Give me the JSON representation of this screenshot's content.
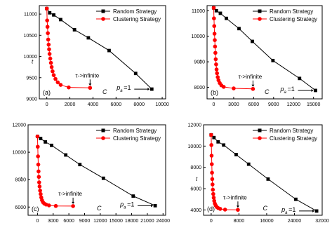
{
  "figure": {
    "panel_count": 4
  },
  "chart_data": [
    {
      "type": "line",
      "panel_label": "(a)",
      "x_ticks": [
        "0",
        "2000",
        "4000",
        "6000",
        "8000",
        "10000"
      ],
      "y_ticks": [
        "9000",
        "9500",
        "10000",
        "10500",
        "11000"
      ],
      "x_tick_values": [
        0,
        2000,
        4000,
        6000,
        8000,
        10000
      ],
      "y_tick_values": [
        9000,
        9500,
        10000,
        10500,
        11000
      ],
      "xlim": [
        -650,
        10300
      ],
      "ylim": [
        9000,
        11200
      ],
      "xlabel": "C",
      "ylabel": "t",
      "legend_position": "top-right",
      "series": [
        {
          "name": "Random Strategy",
          "color": "#000000",
          "marker": "square",
          "x": [
            0,
            250,
            600,
            1200,
            2400,
            3600,
            5400,
            7700,
            9100
          ],
          "y": [
            11130,
            11030,
            10980,
            10870,
            10630,
            10440,
            10140,
            9600,
            9230
          ]
        },
        {
          "name": "Clustering Strategy",
          "color": "#ff0000",
          "marker": "circle",
          "x": [
            0,
            30,
            60,
            90,
            120,
            160,
            200,
            240,
            300,
            360,
            420,
            500,
            600,
            750,
            950,
            1200,
            1900,
            3750
          ],
          "y": [
            11130,
            10850,
            10700,
            10550,
            10400,
            10280,
            10170,
            10060,
            9950,
            9850,
            9750,
            9650,
            9560,
            9470,
            9390,
            9330,
            9270,
            9260
          ]
        }
      ],
      "annotations": [
        {
          "text": "τ->infinite",
          "point": [
            3750,
            9260
          ]
        },
        {
          "text": "p",
          "subscript": "a",
          "suffix": "=1",
          "point": [
            9100,
            9230
          ]
        }
      ]
    },
    {
      "type": "line",
      "panel_label": "(b)",
      "x_ticks": [
        "0",
        "3000",
        "6000",
        "9000",
        "12000",
        "15000"
      ],
      "y_ticks": [
        "8000",
        "9000",
        "10000",
        "11000"
      ],
      "x_tick_values": [
        0,
        3000,
        6000,
        9000,
        12000,
        15000
      ],
      "y_tick_values": [
        8000,
        9000,
        10000,
        11000
      ],
      "xlim": [
        -1000,
        16300
      ],
      "ylim": [
        7550,
        11200
      ],
      "xlabel": "C",
      "ylabel": "t",
      "legend_position": "top-right",
      "series": [
        {
          "name": "Random Strategy",
          "color": "#000000",
          "marker": "square",
          "x": [
            0,
            400,
            1000,
            1900,
            3800,
            5800,
            8900,
            12900,
            15300
          ],
          "y": [
            11110,
            11000,
            10900,
            10700,
            10300,
            9800,
            9050,
            8350,
            7880
          ]
        },
        {
          "name": "Clustering Strategy",
          "color": "#ff0000",
          "marker": "circle",
          "x": [
            0,
            40,
            80,
            120,
            160,
            200,
            250,
            300,
            360,
            430,
            500,
            600,
            720,
            900,
            1150,
            1500,
            3000,
            5900
          ],
          "y": [
            11110,
            10700,
            10400,
            10100,
            9850,
            9600,
            9350,
            9100,
            8900,
            8700,
            8550,
            8400,
            8280,
            8170,
            8080,
            8020,
            7960,
            7940
          ]
        }
      ],
      "annotations": [
        {
          "text": "τ->infinite",
          "point": [
            5900,
            7940
          ]
        },
        {
          "text": "p",
          "subscript": "a",
          "suffix": "=1",
          "point": [
            15300,
            7880
          ]
        }
      ]
    },
    {
      "type": "line",
      "panel_label": "(c)",
      "x_ticks": [
        "0",
        "3000",
        "6000",
        "9000",
        "12000",
        "15000",
        "18000",
        "21000",
        "24000"
      ],
      "y_ticks": [
        "6000",
        "8000",
        "10000",
        "12000"
      ],
      "x_tick_values": [
        0,
        3000,
        6000,
        9000,
        12000,
        15000,
        18000,
        21000,
        24000
      ],
      "y_tick_values": [
        6000,
        8000,
        10000,
        12000
      ],
      "xlim": [
        -1800,
        24500
      ],
      "ylim": [
        5400,
        12000
      ],
      "xlabel": "C",
      "ylabel": "t",
      "legend_position": "top-right",
      "series": [
        {
          "name": "Random Strategy",
          "color": "#000000",
          "marker": "square",
          "x": [
            0,
            600,
            1500,
            2700,
            5400,
            8100,
            12600,
            18300,
            22500
          ],
          "y": [
            11150,
            11000,
            10750,
            10500,
            9800,
            9100,
            8100,
            6800,
            6100
          ]
        },
        {
          "name": "Clustering Strategy",
          "color": "#ff0000",
          "marker": "circle",
          "x": [
            0,
            50,
            100,
            150,
            200,
            260,
            320,
            400,
            500,
            600,
            720,
            860,
            1050,
            1300,
            1650,
            2200,
            3500,
            6800
          ],
          "y": [
            11150,
            10400,
            9700,
            9100,
            8600,
            8200,
            7800,
            7500,
            7200,
            6950,
            6700,
            6500,
            6350,
            6250,
            6180,
            6120,
            6080,
            6070
          ]
        }
      ],
      "annotations": [
        {
          "text": "τ->infinite",
          "point": [
            6800,
            6070
          ]
        },
        {
          "text": "p",
          "subscript": "a",
          "suffix": "=1",
          "point": [
            22500,
            6100
          ]
        }
      ]
    },
    {
      "type": "line",
      "panel_label": "(d)",
      "x_ticks": [
        "0",
        "8000",
        "16000",
        "24000",
        "32000"
      ],
      "y_ticks": [
        "4000",
        "6000",
        "8000",
        "10000",
        "12000"
      ],
      "x_tick_values": [
        0,
        8000,
        16000,
        24000,
        32000
      ],
      "y_tick_values": [
        4000,
        6000,
        8000,
        10000,
        12000
      ],
      "xlim": [
        -2200,
        32000
      ],
      "ylim": [
        3500,
        12000
      ],
      "xlabel": "C",
      "ylabel": "t",
      "legend_position": "top-right",
      "series": [
        {
          "name": "Random Strategy",
          "color": "#000000",
          "marker": "square",
          "x": [
            0,
            800,
            2000,
            3600,
            7200,
            10800,
            16400,
            24400,
            30400
          ],
          "y": [
            11050,
            10800,
            10400,
            10100,
            9200,
            8300,
            6900,
            5000,
            3900
          ]
        },
        {
          "name": "Clustering Strategy",
          "color": "#ff0000",
          "marker": "circle",
          "x": [
            0,
            60,
            120,
            180,
            240,
            310,
            390,
            480,
            600,
            730,
            880,
            1060,
            1300,
            1600,
            2000,
            2600,
            4000,
            7700
          ],
          "y": [
            11050,
            10100,
            9100,
            8300,
            7500,
            6900,
            6400,
            5900,
            5500,
            5150,
            4850,
            4600,
            4420,
            4280,
            4180,
            4100,
            4030,
            4010
          ]
        }
      ],
      "annotations": [
        {
          "text": "τ->infinite",
          "point": [
            7700,
            4010
          ]
        },
        {
          "text": "p",
          "subscript": "a",
          "suffix": "=1",
          "point": [
            30400,
            3900
          ]
        }
      ]
    }
  ]
}
